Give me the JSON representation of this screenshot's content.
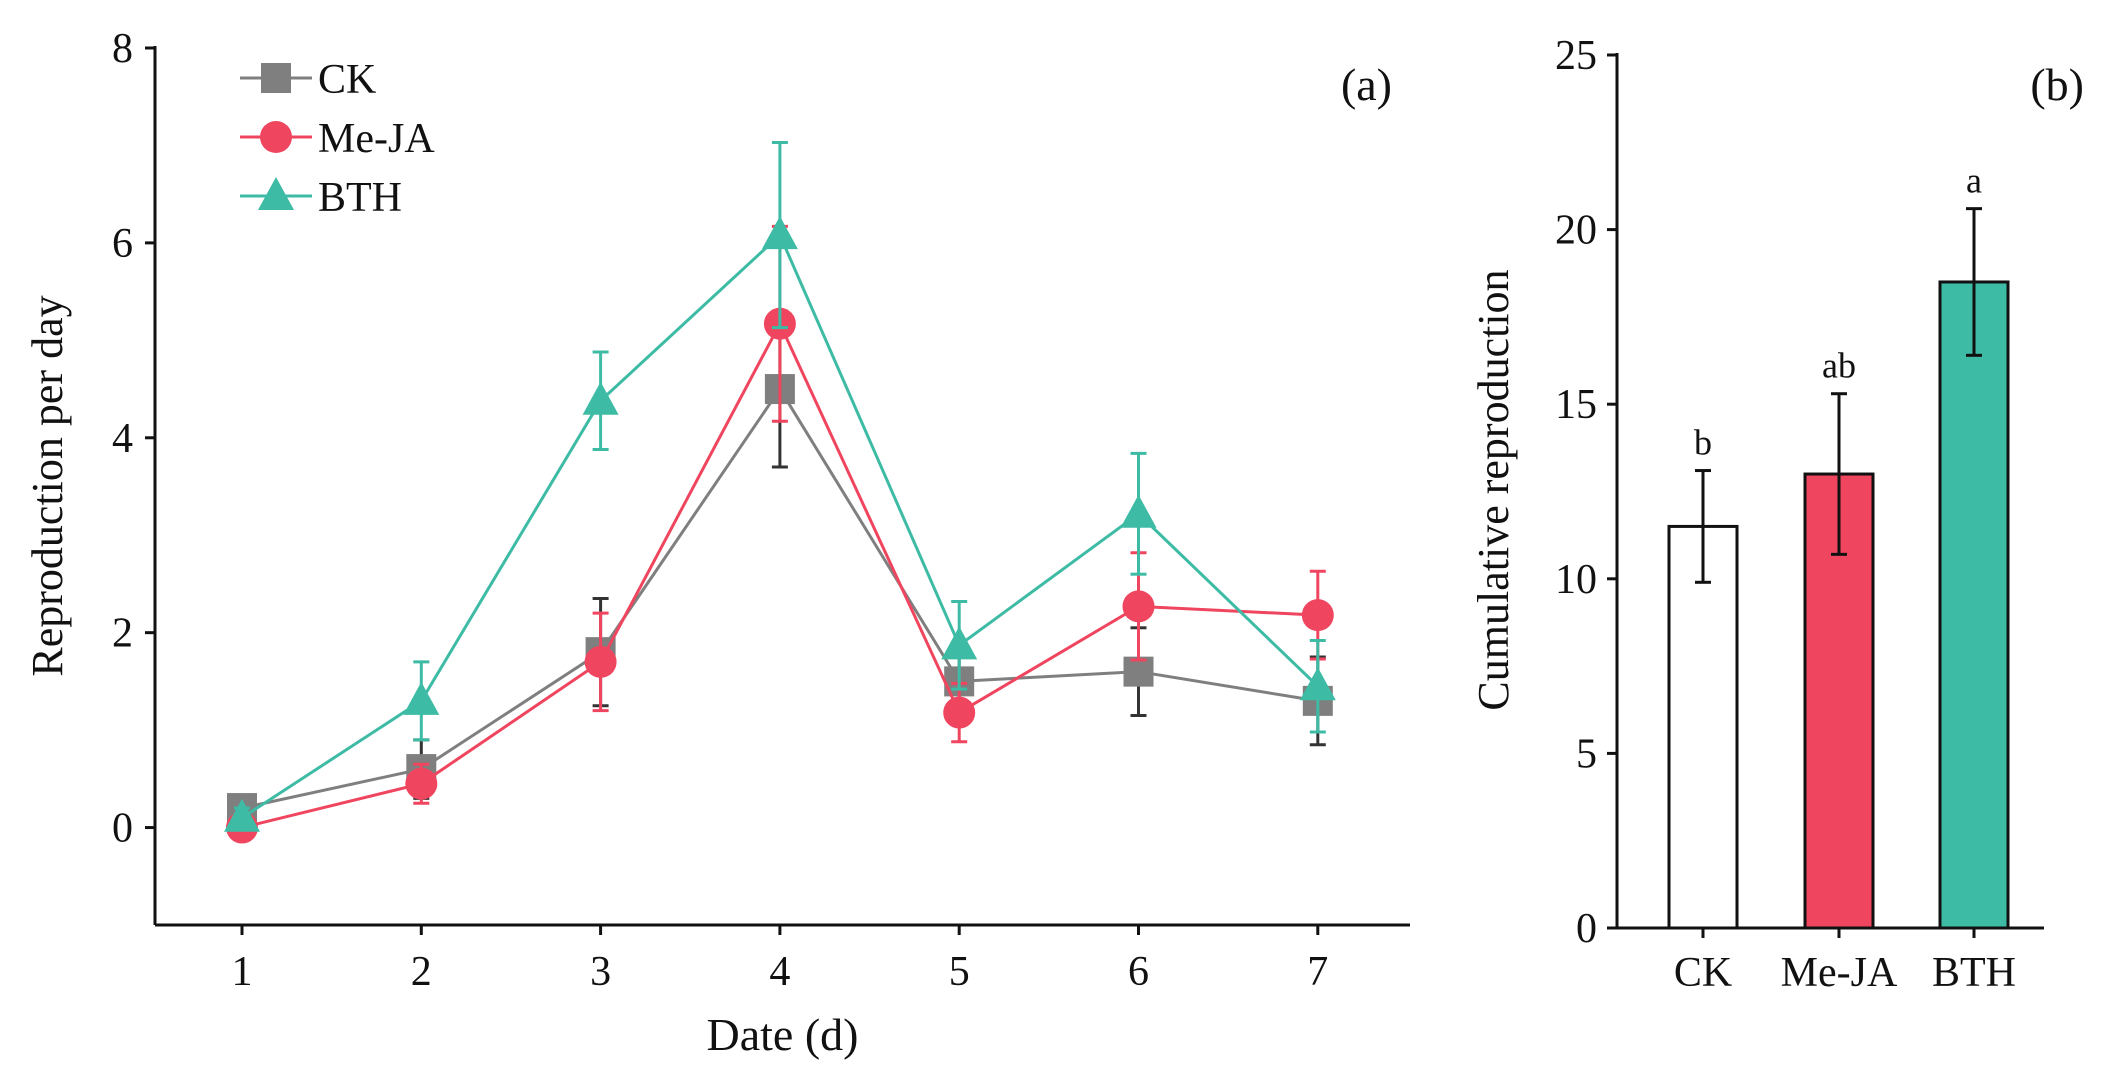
{
  "chart_data": [
    {
      "type": "line",
      "panel_label": "(a)",
      "xlabel": "Date (d)",
      "ylabel": "Reproduction per day",
      "x": [
        1,
        2,
        3,
        4,
        5,
        6,
        7
      ],
      "x_ticks": [
        "1",
        "2",
        "3",
        "4",
        "5",
        "6",
        "7"
      ],
      "y_ticks": [
        "0",
        "2",
        "4",
        "6",
        "8"
      ],
      "ylim": [
        -1,
        8
      ],
      "legend_position": "top-left",
      "series": [
        {
          "name": "CK",
          "color": "#7f7f7f",
          "marker": "square",
          "values": [
            0.2,
            0.6,
            1.8,
            4.5,
            1.5,
            1.6,
            1.3
          ],
          "errors": [
            0.1,
            0.3,
            0.55,
            0.8,
            0.3,
            0.45,
            0.45
          ]
        },
        {
          "name": "Me-JA",
          "color": "#f0455f",
          "marker": "circle",
          "values": [
            0.0,
            0.45,
            1.7,
            5.17,
            1.18,
            2.27,
            2.18
          ],
          "errors": [
            0.05,
            0.2,
            0.5,
            1.0,
            0.3,
            0.55,
            0.45
          ]
        },
        {
          "name": "BTH",
          "color": "#3dbba5",
          "marker": "triangle",
          "values": [
            0.1,
            1.3,
            4.38,
            6.08,
            1.87,
            3.22,
            1.45
          ],
          "errors": [
            0.1,
            0.4,
            0.5,
            0.95,
            0.45,
            0.62,
            0.47
          ]
        }
      ]
    },
    {
      "type": "bar",
      "panel_label": "(b)",
      "xlabel": "",
      "ylabel": "Cumulative reproduction",
      "categories": [
        "CK",
        "Me-JA",
        "BTH"
      ],
      "values": [
        11.5,
        13.0,
        18.5
      ],
      "errors": [
        1.6,
        2.3,
        2.1
      ],
      "significance": [
        "b",
        "ab",
        "a"
      ],
      "colors": [
        "#ffffff",
        "#f0455f",
        "#3dbba5"
      ],
      "y_ticks": [
        "0",
        "5",
        "10",
        "15",
        "20",
        "25"
      ],
      "ylim": [
        0,
        25
      ]
    }
  ]
}
